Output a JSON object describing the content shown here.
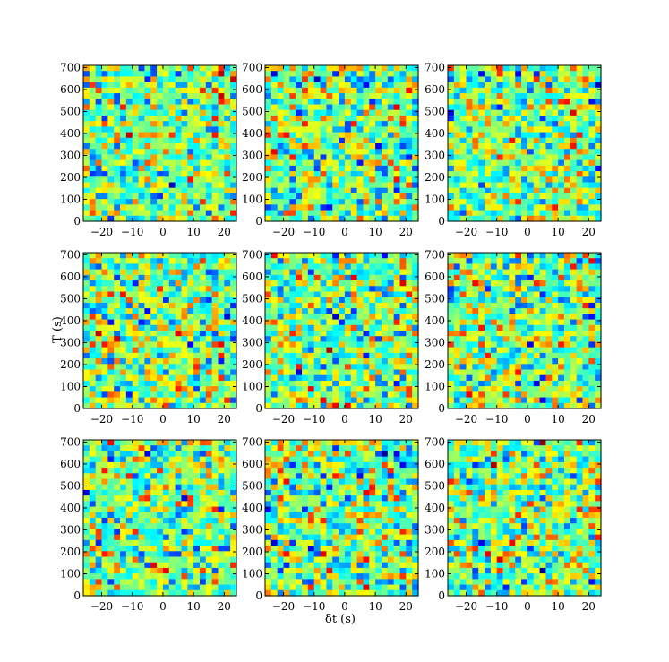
{
  "chart_data": {
    "type": "heatmap",
    "layout": {
      "rows": 3,
      "cols": 3
    },
    "colormap": "jet",
    "xlabel": "δt (s)",
    "ylabel": "T (s)",
    "x_ticks": [
      -20,
      -10,
      0,
      10,
      20
    ],
    "x_tick_labels": [
      "−20",
      "−10",
      "0",
      "10",
      "20"
    ],
    "y_ticks": [
      0,
      100,
      200,
      300,
      400,
      500,
      600,
      700
    ],
    "y_tick_labels": [
      "0",
      "100",
      "200",
      "300",
      "400",
      "500",
      "600",
      "700"
    ],
    "panels": [
      {
        "xlim": [
          -26,
          24
        ],
        "ylim": [
          0,
          710
        ]
      },
      {
        "xlim": [
          -26,
          24
        ],
        "ylim": [
          0,
          710
        ]
      },
      {
        "xlim": [
          -26,
          24
        ],
        "ylim": [
          0,
          710
        ]
      },
      {
        "xlim": [
          -26,
          24
        ],
        "ylim": [
          0,
          710
        ]
      },
      {
        "xlim": [
          -26,
          24
        ],
        "ylim": [
          0,
          710
        ]
      },
      {
        "xlim": [
          -26,
          24
        ],
        "ylim": [
          0,
          710
        ]
      },
      {
        "xlim": [
          -26,
          24
        ],
        "ylim": [
          0,
          710
        ]
      },
      {
        "xlim": [
          -26,
          24
        ],
        "ylim": [
          0,
          710
        ]
      },
      {
        "xlim": [
          -26,
          24
        ],
        "ylim": [
          0,
          710
        ]
      }
    ]
  }
}
